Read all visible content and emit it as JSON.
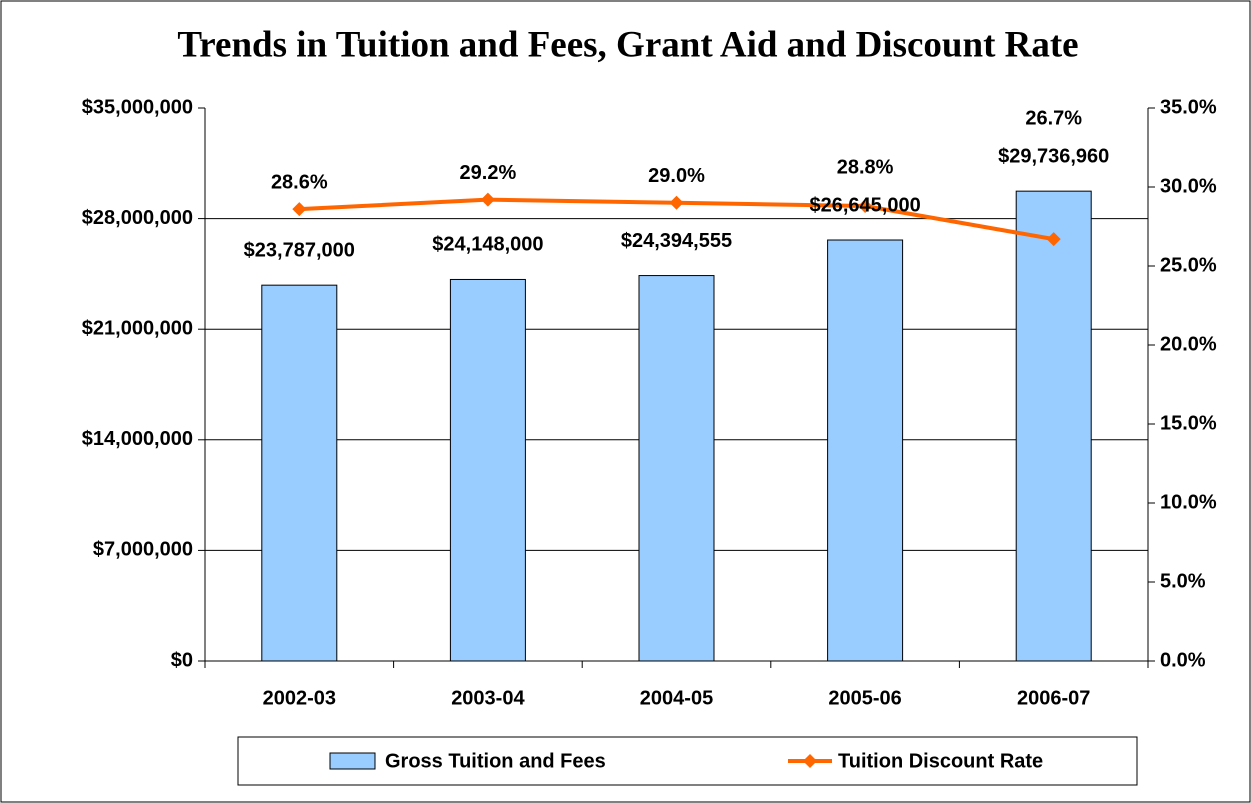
{
  "chart_data": {
    "type": "bar",
    "title": "Trends in Tuition and Fees, Grant Aid and Discount Rate",
    "categories": [
      "2002-03",
      "2003-04",
      "2004-05",
      "2005-06",
      "2006-07"
    ],
    "series": [
      {
        "name": "Gross Tuition and Fees",
        "type": "bar",
        "color": "#99ccff",
        "values": [
          23787000,
          24148000,
          24394555,
          26645000,
          29736960
        ],
        "value_labels": [
          "$23,787,000",
          "$24,148,000",
          "$24,394,555",
          "$26,645,000",
          "$29,736,960"
        ]
      },
      {
        "name": "Tuition Discount Rate",
        "type": "line",
        "axis": "y2",
        "color": "#ff6600",
        "values": [
          28.6,
          29.2,
          29.0,
          28.8,
          26.7
        ],
        "value_labels": [
          "28.6%",
          "29.2%",
          "29.0%",
          "28.8%",
          "26.7%"
        ]
      }
    ],
    "ylim": [
      0,
      35000000
    ],
    "yticks": [
      {
        "value": 0,
        "label": "$0"
      },
      {
        "value": 7000000,
        "label": "$7,000,000"
      },
      {
        "value": 14000000,
        "label": "$14,000,000"
      },
      {
        "value": 21000000,
        "label": "$21,000,000"
      },
      {
        "value": 28000000,
        "label": "$28,000,000"
      },
      {
        "value": 35000000,
        "label": "$35,000,000"
      }
    ],
    "y2lim": [
      0,
      35
    ],
    "y2ticks": [
      {
        "value": 0,
        "label": "0.0%"
      },
      {
        "value": 5,
        "label": "5.0%"
      },
      {
        "value": 10,
        "label": "10.0%"
      },
      {
        "value": 15,
        "label": "15.0%"
      },
      {
        "value": 20,
        "label": "20.0%"
      },
      {
        "value": 25,
        "label": "25.0%"
      },
      {
        "value": 30,
        "label": "30.0%"
      },
      {
        "value": 35,
        "label": "35.0%"
      }
    ],
    "grid": true,
    "legend": "bottom"
  }
}
